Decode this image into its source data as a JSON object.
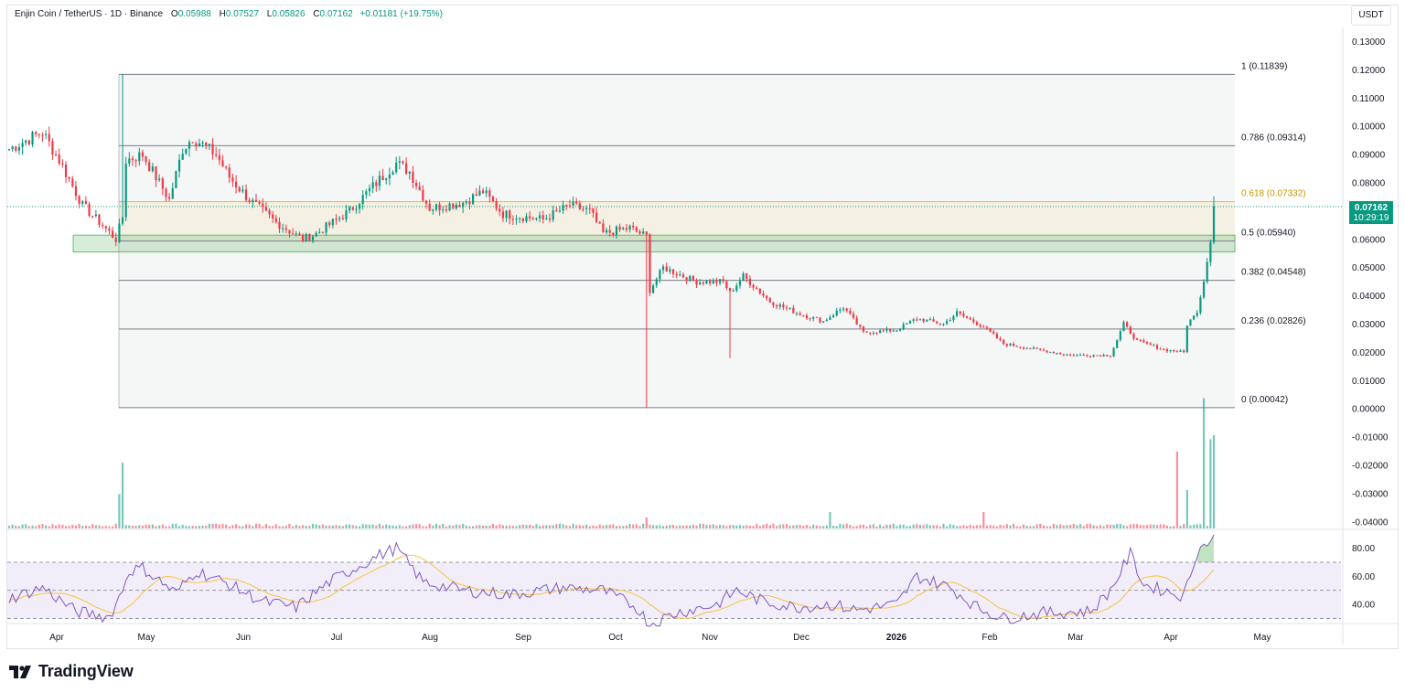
{
  "header": {
    "symbol": "Enjin Coin / TetherUS · 1D · Binance",
    "open_label": "O",
    "open": "0.05988",
    "high_label": "H",
    "high": "0.07527",
    "low_label": "L",
    "low": "0.05826",
    "close_label": "C",
    "close": "0.07162",
    "change": "+0.01181 (+19.75%)"
  },
  "unit_button": "USDT",
  "price_tag": {
    "price": "0.07162",
    "countdown": "10:29:19"
  },
  "logo": {
    "text": "TradingView"
  },
  "colors": {
    "up": "#089981",
    "down": "#f23645",
    "fib_gold": "#f2b81d",
    "rsi": "#7e57c2",
    "rsi_ma": "#f5c242"
  },
  "chart_data": {
    "type": "candlestick",
    "price_axis": {
      "ticks": [
        "0.13000",
        "0.12000",
        "0.11000",
        "0.10000",
        "0.09000",
        "0.08000",
        "0.07000",
        "0.06000",
        "0.05000",
        "0.04000",
        "0.03000",
        "0.02000",
        "0.01000",
        "0.00000",
        "-0.01000",
        "-0.02000",
        "-0.03000",
        "-0.04000"
      ],
      "ylim": [
        -0.043,
        0.136
      ]
    },
    "rsi_axis": {
      "ticks": [
        "80.00",
        "60.00",
        "40.00"
      ],
      "bands": [
        30,
        50,
        70
      ]
    },
    "time_axis": {
      "labels": [
        "Apr",
        "May",
        "Jun",
        "Jul",
        "Aug",
        "Sep",
        "Oct",
        "Nov",
        "Dec",
        "2026",
        "Feb",
        "Mar",
        "Apr",
        "May"
      ]
    },
    "fib_levels": [
      {
        "label": "1 (0.11839)",
        "value": 0.11839
      },
      {
        "label": "0.786 (0.09314)",
        "value": 0.09314
      },
      {
        "label": "0.618 (0.07332)",
        "value": 0.07332
      },
      {
        "label": "0.5 (0.05940)",
        "value": 0.0594
      },
      {
        "label": "0.382 (0.04548)",
        "value": 0.04548
      },
      {
        "label": "0.236 (0.02826)",
        "value": 0.02826
      },
      {
        "label": "0 (0.00042)",
        "value": 0.00042
      }
    ],
    "support_zone": [
      0.0555,
      0.0615
    ],
    "last_price": 0.07162,
    "anchors": [
      [
        0,
        0.092
      ],
      [
        10,
        0.098
      ],
      [
        15,
        0.088
      ],
      [
        22,
        0.072
      ],
      [
        28,
        0.065
      ],
      [
        32,
        0.06
      ],
      [
        34,
        0.068
      ],
      [
        35,
        0.088
      ],
      [
        40,
        0.09
      ],
      [
        48,
        0.074
      ],
      [
        52,
        0.092
      ],
      [
        55,
        0.096
      ],
      [
        62,
        0.09
      ],
      [
        66,
        0.082
      ],
      [
        72,
        0.074
      ],
      [
        80,
        0.066
      ],
      [
        88,
        0.06
      ],
      [
        92,
        0.062
      ],
      [
        102,
        0.07
      ],
      [
        110,
        0.08
      ],
      [
        116,
        0.087
      ],
      [
        120,
        0.084
      ],
      [
        126,
        0.071
      ],
      [
        136,
        0.073
      ],
      [
        142,
        0.077
      ],
      [
        148,
        0.069
      ],
      [
        160,
        0.067
      ],
      [
        168,
        0.072
      ],
      [
        174,
        0.07
      ],
      [
        178,
        0.062
      ],
      [
        186,
        0.064
      ],
      [
        191,
        0.061
      ],
      [
        192,
        0.042
      ],
      [
        196,
        0.05
      ],
      [
        206,
        0.045
      ],
      [
        214,
        0.045
      ],
      [
        216,
        0.041
      ],
      [
        220,
        0.047
      ],
      [
        228,
        0.038
      ],
      [
        236,
        0.034
      ],
      [
        244,
        0.031
      ],
      [
        250,
        0.036
      ],
      [
        256,
        0.027
      ],
      [
        266,
        0.028
      ],
      [
        272,
        0.032
      ],
      [
        280,
        0.03
      ],
      [
        284,
        0.034
      ],
      [
        292,
        0.029
      ],
      [
        298,
        0.023
      ],
      [
        308,
        0.021
      ],
      [
        318,
        0.019
      ],
      [
        330,
        0.019
      ],
      [
        334,
        0.03
      ],
      [
        338,
        0.024
      ],
      [
        346,
        0.021
      ],
      [
        352,
        0.02
      ],
      [
        353,
        0.03
      ],
      [
        356,
        0.034
      ],
      [
        358,
        0.045
      ],
      [
        360,
        0.059
      ],
      [
        361,
        0.0716
      ]
    ],
    "rsi_anchors": [
      [
        0,
        44
      ],
      [
        10,
        52
      ],
      [
        20,
        35
      ],
      [
        30,
        31
      ],
      [
        33,
        45
      ],
      [
        36,
        64
      ],
      [
        40,
        66
      ],
      [
        50,
        48
      ],
      [
        56,
        64
      ],
      [
        66,
        54
      ],
      [
        76,
        42
      ],
      [
        86,
        38
      ],
      [
        96,
        56
      ],
      [
        110,
        74
      ],
      [
        116,
        80
      ],
      [
        124,
        56
      ],
      [
        136,
        50
      ],
      [
        150,
        47
      ],
      [
        166,
        52
      ],
      [
        178,
        50
      ],
      [
        188,
        38
      ],
      [
        192,
        26
      ],
      [
        200,
        34
      ],
      [
        212,
        40
      ],
      [
        218,
        50
      ],
      [
        226,
        42
      ],
      [
        236,
        38
      ],
      [
        246,
        40
      ],
      [
        254,
        36
      ],
      [
        266,
        40
      ],
      [
        272,
        60
      ],
      [
        282,
        52
      ],
      [
        290,
        38
      ],
      [
        298,
        30
      ],
      [
        310,
        34
      ],
      [
        324,
        35
      ],
      [
        330,
        50
      ],
      [
        336,
        76
      ],
      [
        340,
        54
      ],
      [
        352,
        46
      ],
      [
        356,
        78
      ],
      [
        361,
        88
      ]
    ],
    "volume_spikes": [
      [
        33,
        0.25
      ],
      [
        34,
        0.48
      ],
      [
        191,
        0.08
      ],
      [
        246,
        0.12
      ],
      [
        292,
        0.12
      ],
      [
        350,
        0.56
      ],
      [
        353,
        0.28
      ],
      [
        358,
        0.95
      ],
      [
        360,
        0.65
      ],
      [
        361,
        0.68
      ]
    ]
  }
}
